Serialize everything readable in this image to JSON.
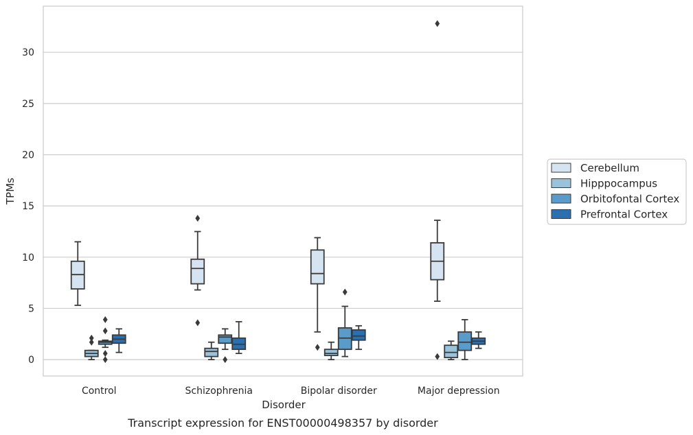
{
  "chart_data": {
    "type": "box",
    "title": "",
    "caption": "Transcript expression for ENST00000498357 by disorder",
    "xlabel": "Disorder",
    "ylabel": "TPMs",
    "ylim": [
      -1.6,
      34.5
    ],
    "yticks": [
      0,
      5,
      10,
      15,
      20,
      25,
      30
    ],
    "grid": "horizontal",
    "legend_position": "right",
    "categories": [
      "Control",
      "Schizophrenia",
      "Bipolar disorder",
      "Major depression"
    ],
    "series": [
      {
        "name": "Cerebellum",
        "color": "#d6e4f1",
        "boxes": [
          {
            "whisker_low": 5.3,
            "q1": 6.9,
            "median": 8.3,
            "q3": 9.6,
            "whisker_high": 11.5,
            "outliers": []
          },
          {
            "whisker_low": 6.8,
            "q1": 7.4,
            "median": 8.9,
            "q3": 9.8,
            "whisker_high": 12.5,
            "outliers": [
              13.8,
              3.6
            ]
          },
          {
            "whisker_low": 2.7,
            "q1": 7.4,
            "median": 8.4,
            "q3": 10.7,
            "whisker_high": 11.9,
            "outliers": [
              1.2
            ]
          },
          {
            "whisker_low": 5.7,
            "q1": 7.8,
            "median": 9.6,
            "q3": 11.4,
            "whisker_high": 13.6,
            "outliers": [
              32.8,
              0.3
            ]
          }
        ]
      },
      {
        "name": "Hipppocampus",
        "color": "#9ac2da",
        "boxes": [
          {
            "whisker_low": 0.0,
            "q1": 0.3,
            "median": 0.6,
            "q3": 0.9,
            "whisker_high": 0.9,
            "outliers": [
              2.1,
              1.7
            ]
          },
          {
            "whisker_low": 0.0,
            "q1": 0.3,
            "median": 0.8,
            "q3": 1.1,
            "whisker_high": 1.7,
            "outliers": []
          },
          {
            "whisker_low": 0.0,
            "q1": 0.4,
            "median": 0.6,
            "q3": 1.0,
            "whisker_high": 1.7,
            "outliers": []
          },
          {
            "whisker_low": 0.0,
            "q1": 0.2,
            "median": 0.7,
            "q3": 1.4,
            "whisker_high": 1.8,
            "outliers": []
          }
        ]
      },
      {
        "name": "Orbitofontal Cortex",
        "color": "#5a9bc9",
        "boxes": [
          {
            "whisker_low": 1.2,
            "q1": 1.5,
            "median": 1.7,
            "q3": 1.8,
            "whisker_high": 1.9,
            "outliers": [
              3.9,
              2.8,
              0.6,
              0.0
            ]
          },
          {
            "whisker_low": 1.0,
            "q1": 1.6,
            "median": 2.2,
            "q3": 2.4,
            "whisker_high": 3.0,
            "outliers": [
              0.0
            ]
          },
          {
            "whisker_low": 0.3,
            "q1": 1.0,
            "median": 2.1,
            "q3": 3.1,
            "whisker_high": 5.2,
            "outliers": [
              6.6
            ]
          },
          {
            "whisker_low": 0.0,
            "q1": 0.9,
            "median": 1.7,
            "q3": 2.7,
            "whisker_high": 3.9,
            "outliers": []
          }
        ]
      },
      {
        "name": "Prefrontal Cortex",
        "color": "#2a6fb0",
        "boxes": [
          {
            "whisker_low": 0.7,
            "q1": 1.6,
            "median": 2.0,
            "q3": 2.4,
            "whisker_high": 3.0,
            "outliers": []
          },
          {
            "whisker_low": 0.6,
            "q1": 1.0,
            "median": 1.5,
            "q3": 2.1,
            "whisker_high": 3.7,
            "outliers": []
          },
          {
            "whisker_low": 1.0,
            "q1": 1.9,
            "median": 2.3,
            "q3": 2.9,
            "whisker_high": 3.3,
            "outliers": []
          },
          {
            "whisker_low": 1.1,
            "q1": 1.5,
            "median": 1.8,
            "q3": 2.1,
            "whisker_high": 2.7,
            "outliers": []
          }
        ]
      }
    ]
  }
}
